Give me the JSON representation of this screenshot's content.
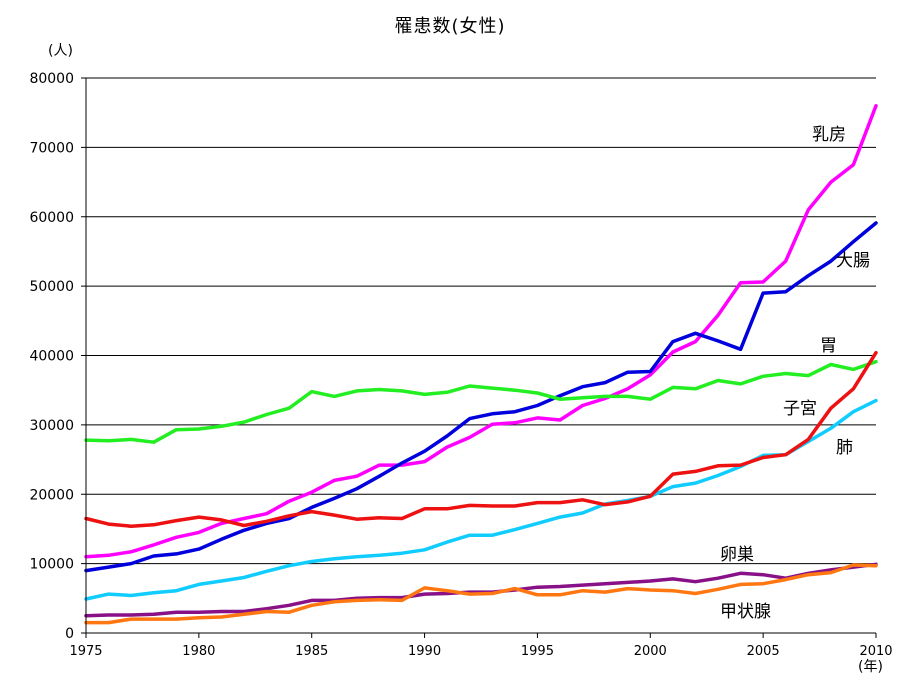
{
  "chart_data": {
    "type": "line",
    "title": "罹患数(女性)",
    "ylabel": "(人)",
    "xlabel": "(年)",
    "ylim": [
      0,
      80000
    ],
    "xlim": [
      1975,
      2010
    ],
    "y_ticks": [
      "0",
      "10000",
      "20000",
      "30000",
      "40000",
      "50000",
      "60000",
      "70000",
      "80000"
    ],
    "x_ticks": [
      "1975",
      "1980",
      "1985",
      "1990",
      "1995",
      "2000",
      "2005",
      "2010"
    ],
    "grid": true,
    "x": [
      1975,
      1976,
      1977,
      1978,
      1979,
      1980,
      1981,
      1982,
      1983,
      1984,
      1985,
      1986,
      1987,
      1988,
      1989,
      1990,
      1991,
      1992,
      1993,
      1994,
      1995,
      1996,
      1997,
      1998,
      1999,
      2000,
      2001,
      2002,
      2003,
      2004,
      2005,
      2006,
      2007,
      2008,
      2009,
      2010
    ],
    "series": [
      {
        "name": "乳房",
        "color": "#ff00ff",
        "values": [
          11000,
          11200,
          11700,
          12700,
          13800,
          14500,
          15800,
          16500,
          17200,
          19000,
          20300,
          22000,
          22600,
          24200,
          24200,
          24700,
          26800,
          28200,
          30100,
          30300,
          31000,
          30700,
          32800,
          33800,
          35200,
          37200,
          40500,
          42000,
          45800,
          50500,
          50600,
          53600,
          61000,
          65000,
          67500,
          76000
        ]
      },
      {
        "name": "大腸",
        "color": "#0000dd",
        "values": [
          9000,
          9500,
          10000,
          11100,
          11400,
          12100,
          13500,
          14800,
          15800,
          16500,
          18100,
          19400,
          20800,
          22600,
          24500,
          26200,
          28400,
          30900,
          31600,
          31900,
          32800,
          34200,
          35500,
          36100,
          37600,
          37700,
          42000,
          43200,
          42100,
          40900,
          49000,
          49200,
          51500,
          53600,
          56400,
          59100
        ]
      },
      {
        "name": "胃",
        "color": "#22ee22",
        "values": [
          27800,
          27700,
          27900,
          27500,
          29300,
          29400,
          29800,
          30400,
          31500,
          32400,
          34800,
          34100,
          34900,
          35100,
          34900,
          34400,
          34700,
          35600,
          35300,
          35000,
          34600,
          33700,
          33900,
          34100,
          34100,
          33700,
          35400,
          35200,
          36400,
          35900,
          37000,
          37400,
          37100,
          38700,
          38000,
          39100
        ]
      },
      {
        "name": "子宮",
        "color": "#11ccff",
        "values": [
          4900,
          5600,
          5400,
          5800,
          6100,
          7000,
          7500,
          8000,
          8900,
          9700,
          10300,
          10700,
          11000,
          11200,
          11500,
          12000,
          13100,
          14100,
          14100,
          14900,
          15800,
          16700,
          17300,
          18600,
          19100,
          19700,
          21100,
          21600,
          22700,
          24000,
          25600,
          25700,
          27600,
          29500,
          31900,
          33500
        ]
      },
      {
        "name": "肺",
        "color": "#ee1111",
        "values": [
          16500,
          15700,
          15400,
          15600,
          16200,
          16700,
          16300,
          15500,
          16100,
          16900,
          17500,
          17000,
          16400,
          16600,
          16500,
          17900,
          17900,
          18400,
          18300,
          18300,
          18800,
          18800,
          19200,
          18500,
          18900,
          19700,
          22900,
          23300,
          24100,
          24200,
          25300,
          25700,
          27900,
          32400,
          35200,
          40400
        ]
      },
      {
        "name": "卵巣",
        "color": "#881188",
        "values": [
          2500,
          2600,
          2600,
          2700,
          3000,
          3000,
          3100,
          3100,
          3500,
          4000,
          4700,
          4700,
          5000,
          5100,
          5100,
          5600,
          5700,
          5900,
          5900,
          6200,
          6600,
          6700,
          6900,
          7100,
          7300,
          7500,
          7800,
          7400,
          7900,
          8600,
          8400,
          7900,
          8600,
          9100,
          9500,
          9900
        ]
      },
      {
        "name": "甲状腺",
        "color": "#ff7711",
        "values": [
          1500,
          1500,
          2000,
          2000,
          2000,
          2200,
          2300,
          2700,
          3100,
          3000,
          4000,
          4500,
          4700,
          4800,
          4700,
          6500,
          6100,
          5600,
          5700,
          6400,
          5500,
          5500,
          6100,
          5900,
          6400,
          6200,
          6100,
          5700,
          6300,
          7000,
          7100,
          7700,
          8400,
          8700,
          9800,
          9700
        ]
      }
    ]
  }
}
